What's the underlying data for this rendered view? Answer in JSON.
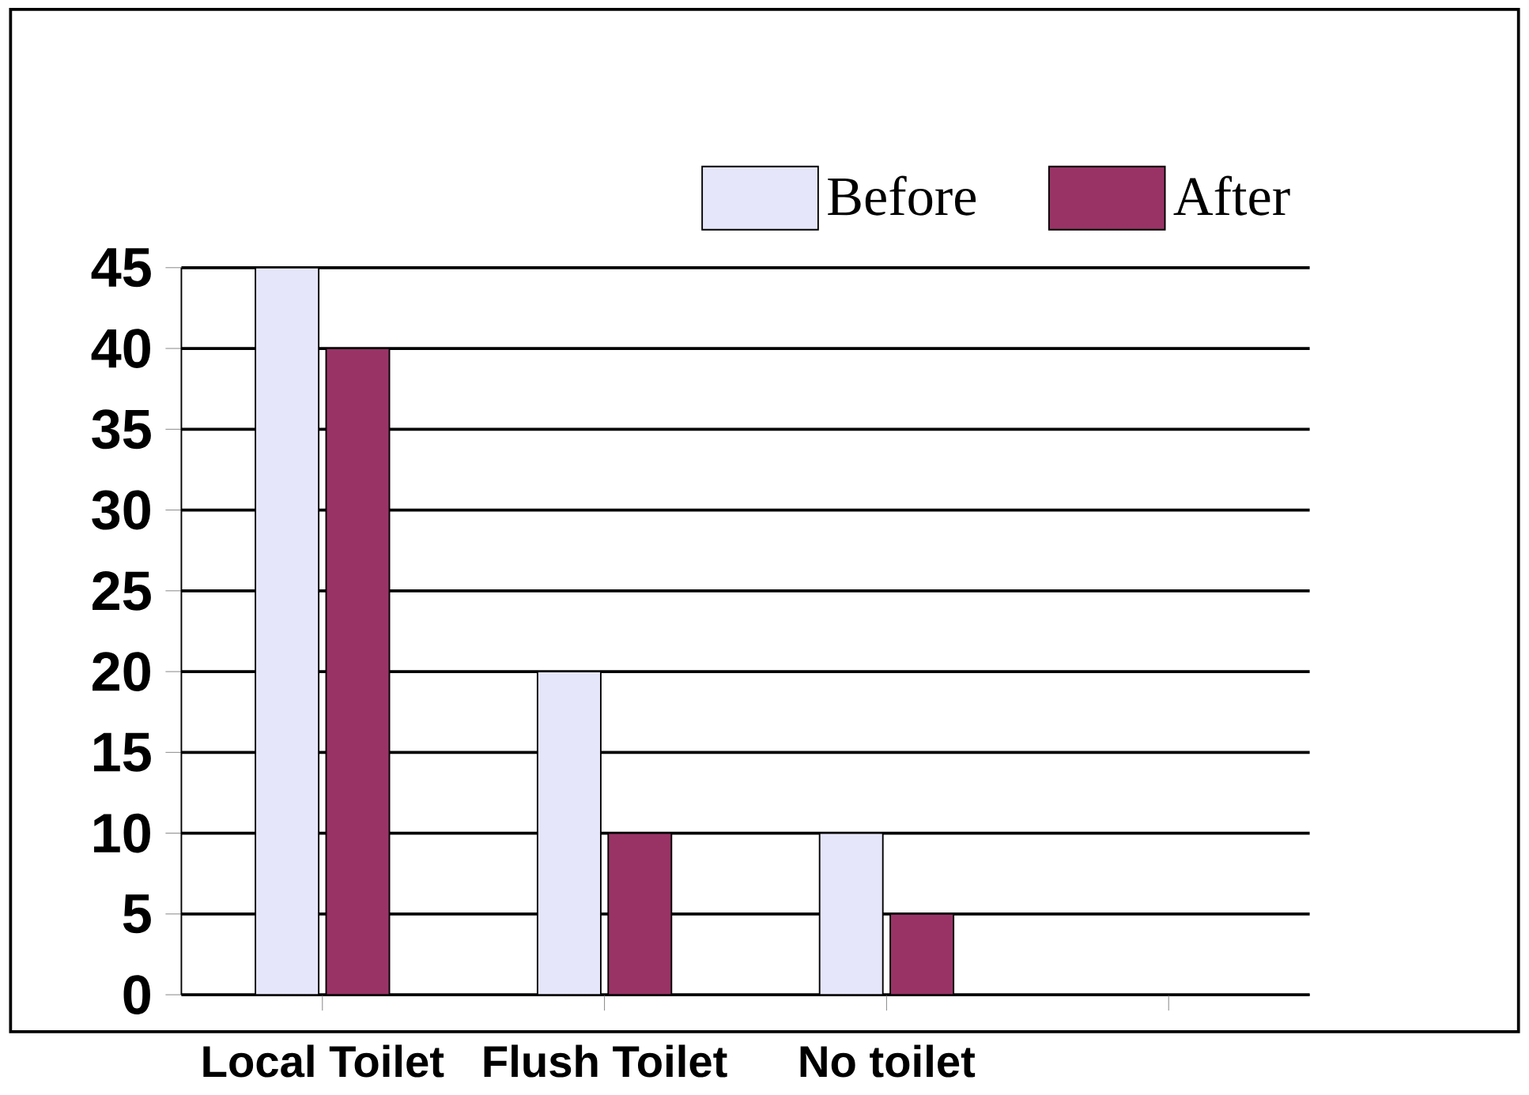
{
  "chart_data": {
    "type": "bar",
    "categories": [
      "Local Toilet",
      "Flush Toilet",
      "No toilet",
      null
    ],
    "series": [
      {
        "name": "Before",
        "color": "#e6e6fa",
        "values": [
          45,
          20,
          10,
          null
        ]
      },
      {
        "name": "After",
        "color": "#993366",
        "values": [
          40,
          10,
          5,
          null
        ]
      }
    ],
    "ylim": [
      0,
      45
    ],
    "yticks": [
      0,
      5,
      10,
      15,
      20,
      25,
      30,
      35,
      40,
      45
    ],
    "grid": "y",
    "legend": "top right"
  }
}
